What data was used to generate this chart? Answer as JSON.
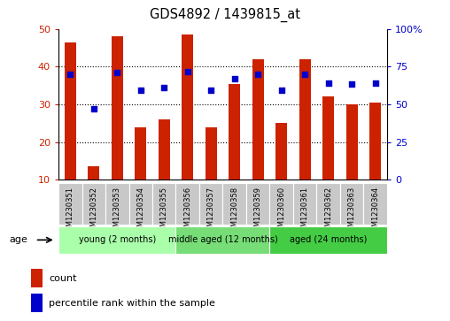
{
  "title": "GDS4892 / 1439815_at",
  "samples": [
    "GSM1230351",
    "GSM1230352",
    "GSM1230353",
    "GSM1230354",
    "GSM1230355",
    "GSM1230356",
    "GSM1230357",
    "GSM1230358",
    "GSM1230359",
    "GSM1230360",
    "GSM1230361",
    "GSM1230362",
    "GSM1230363",
    "GSM1230364"
  ],
  "counts": [
    46.5,
    13.5,
    48.0,
    24.0,
    26.0,
    48.5,
    24.0,
    35.5,
    42.0,
    25.0,
    42.0,
    32.0,
    30.0,
    30.5
  ],
  "percentiles": [
    70.0,
    47.0,
    71.0,
    59.5,
    61.0,
    71.5,
    59.5,
    67.0,
    70.0,
    59.5,
    70.0,
    64.0,
    63.5,
    64.0
  ],
  "bar_color": "#cc2200",
  "dot_color": "#0000cc",
  "ylim_left": [
    10,
    50
  ],
  "ylim_right": [
    0,
    100
  ],
  "yticks_left": [
    10,
    20,
    30,
    40,
    50
  ],
  "yticks_right": [
    0,
    25,
    50,
    75,
    100
  ],
  "groups": [
    {
      "label": "young (2 months)",
      "start": 0,
      "end": 5,
      "color": "#aaffaa"
    },
    {
      "label": "middle aged (12 months)",
      "start": 5,
      "end": 9,
      "color": "#77dd77"
    },
    {
      "label": "aged (24 months)",
      "start": 9,
      "end": 14,
      "color": "#44cc44"
    }
  ],
  "group_row_label": "age",
  "legend_count_label": "count",
  "legend_percentile_label": "percentile rank within the sample",
  "background_color": "#ffffff",
  "title_fontsize": 10.5,
  "bar_width": 0.5
}
